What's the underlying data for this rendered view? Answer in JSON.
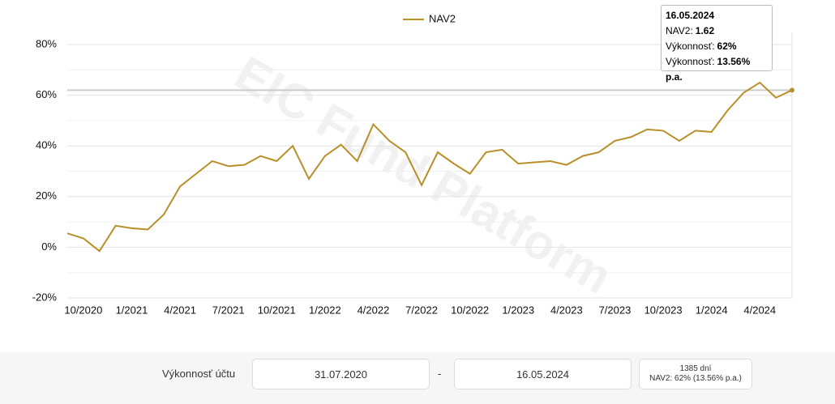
{
  "chart_data": {
    "type": "line",
    "legend": "NAV2",
    "categories": [
      null,
      "10/2020",
      null,
      null,
      "1/2021",
      null,
      null,
      "4/2021",
      null,
      null,
      "7/2021",
      null,
      null,
      "10/2021",
      null,
      null,
      "1/2022",
      null,
      null,
      "4/2022",
      null,
      null,
      "7/2022",
      null,
      null,
      "10/2022",
      null,
      null,
      "1/2023",
      null,
      null,
      "4/2023",
      null,
      null,
      "7/2023",
      null,
      null,
      "10/2023",
      null,
      null,
      "1/2024",
      null,
      null,
      "4/2024",
      null,
      null
    ],
    "series": [
      {
        "name": "NAV2",
        "color": "#b8902a",
        "values": [
          5.5,
          3.5,
          -1.5,
          8.5,
          7.5,
          7,
          13,
          24,
          29,
          34,
          32,
          32.5,
          36,
          34,
          40,
          27,
          36,
          40.5,
          34,
          48.5,
          42,
          37.5,
          24.5,
          37.5,
          33,
          29,
          37.5,
          38.5,
          33,
          33.5,
          34,
          32.5,
          36,
          37.5,
          42,
          43.5,
          46.5,
          46,
          42,
          46,
          45.5,
          54,
          61,
          65,
          59,
          62
        ]
      }
    ],
    "ylim": [
      -20,
      80
    ],
    "yticks": [
      {
        "value": -20,
        "label": "-20%"
      },
      {
        "value": 0,
        "label": "0%"
      },
      {
        "value": 20,
        "label": "20%"
      },
      {
        "value": 40,
        "label": "40%"
      },
      {
        "value": 60,
        "label": "60%"
      },
      {
        "value": 80,
        "label": "80%"
      }
    ],
    "minor_yticks": [
      -10,
      10,
      30,
      50,
      70
    ],
    "grid": true,
    "watermark": "EIC Fund Platform",
    "tooltip": {
      "date": "16.05.2024",
      "rows": [
        {
          "label": "NAV2:",
          "value": "1.62"
        },
        {
          "label": "Výkonnosť:",
          "value": "62%"
        },
        {
          "label": "Výkonnosť:",
          "value": "13.56% p.a."
        }
      ]
    }
  },
  "footer": {
    "label": "Výkonnosť účtu",
    "from": "31.07.2020",
    "separator": "-",
    "to": "16.05.2024",
    "summary": [
      "1385 dní",
      "NAV2: 62% (13.56% p.a.)"
    ]
  }
}
